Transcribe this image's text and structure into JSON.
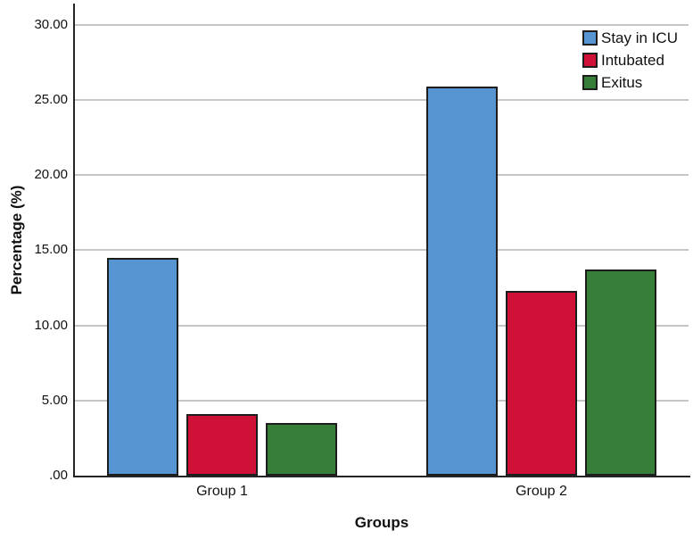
{
  "chart_data": {
    "type": "bar",
    "title": "",
    "categories": [
      "Group 1",
      "Group 2"
    ],
    "series": [
      {
        "name": "Stay in ICU",
        "color": "#5795D2",
        "values": [
          14.5,
          25.9
        ]
      },
      {
        "name": "Intubated",
        "color": "#CF1137",
        "values": [
          4.1,
          12.3
        ]
      },
      {
        "name": "Exitus",
        "color": "#377F38",
        "values": [
          3.5,
          13.7
        ]
      }
    ],
    "xlabel": "Groups",
    "ylabel": "Percentage (%)",
    "ylim": [
      0,
      31.4
    ],
    "yticks": [
      {
        "value": 0,
        "label": ".00"
      },
      {
        "value": 5,
        "label": "5.00"
      },
      {
        "value": 10,
        "label": "10.00"
      },
      {
        "value": 15,
        "label": "15.00"
      },
      {
        "value": 20,
        "label": "20.00"
      },
      {
        "value": 25,
        "label": "25.00"
      },
      {
        "value": 30,
        "label": "30.00"
      }
    ],
    "grid": true,
    "legend_position": "top-right",
    "axis_color": "#242424",
    "grid_color": "#c6c6c6",
    "bar_border_color": "#1d1d1d"
  }
}
